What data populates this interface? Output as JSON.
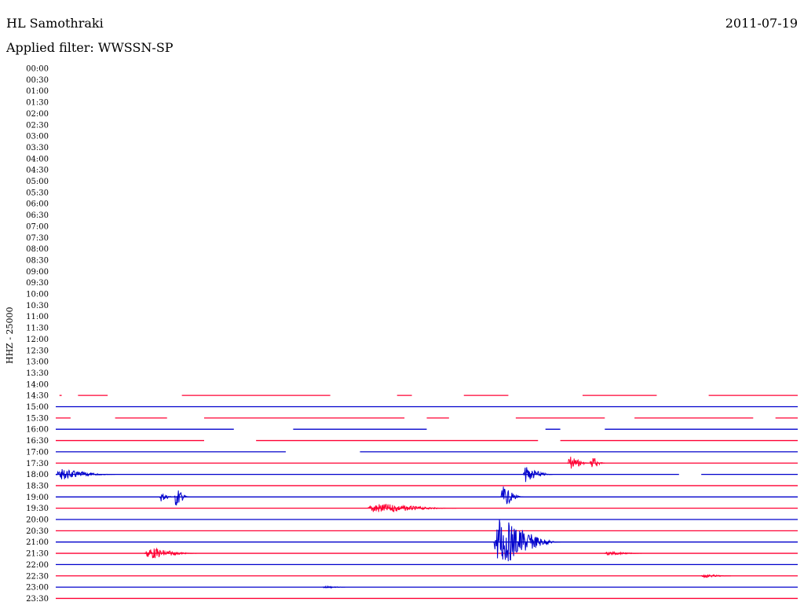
{
  "header": {
    "station": "HL Samothraki",
    "date": "2011-07-19",
    "filter": "Applied filter: WWSSN-SP"
  },
  "chart_data": {
    "type": "line",
    "title": "HL Samothraki",
    "ylabel": "HHZ - 25000",
    "colors": {
      "even": "#ff0033",
      "odd": "#0000cc"
    },
    "tick_labels": [
      "00:00",
      "00:30",
      "01:00",
      "01:30",
      "02:00",
      "02:30",
      "03:00",
      "03:30",
      "04:00",
      "04:30",
      "05:00",
      "05:30",
      "06:00",
      "06:30",
      "07:00",
      "07:30",
      "08:00",
      "08:30",
      "09:00",
      "09:30",
      "10:00",
      "10:30",
      "11:00",
      "11:30",
      "12:00",
      "12:30",
      "13:00",
      "13:30",
      "14:00",
      "14:30",
      "15:00",
      "15:30",
      "16:00",
      "16:30",
      "17:00",
      "17:30",
      "18:00",
      "18:30",
      "19:00",
      "19:30",
      "20:00",
      "20:30",
      "21:00",
      "21:30",
      "22:00",
      "22:30",
      "23:00",
      "23:30"
    ],
    "traces": [
      {
        "time": "14:30",
        "color": "red",
        "segments": [
          [
            0.005,
            0.008
          ],
          [
            0.03,
            0.07
          ],
          [
            0.17,
            0.37
          ],
          [
            0.46,
            0.48
          ],
          [
            0.55,
            0.61
          ],
          [
            0.71,
            0.81
          ],
          [
            0.88,
            1.0
          ]
        ]
      },
      {
        "time": "15:00",
        "color": "blue",
        "segments": [
          [
            0.0,
            1.0
          ]
        ]
      },
      {
        "time": "15:30",
        "color": "red",
        "segments": [
          [
            0.0,
            0.02
          ],
          [
            0.08,
            0.15
          ],
          [
            0.2,
            0.47
          ],
          [
            0.5,
            0.53
          ],
          [
            0.62,
            0.74
          ],
          [
            0.78,
            0.94
          ],
          [
            0.97,
            1.0
          ]
        ]
      },
      {
        "time": "16:00",
        "color": "blue",
        "segments": [
          [
            0.0,
            0.24
          ],
          [
            0.32,
            0.5
          ],
          [
            0.66,
            0.68
          ],
          [
            0.74,
            1.0
          ]
        ]
      },
      {
        "time": "16:30",
        "color": "red",
        "segments": [
          [
            0.0,
            0.2
          ],
          [
            0.27,
            0.65
          ],
          [
            0.68,
            1.0
          ]
        ]
      },
      {
        "time": "17:00",
        "color": "blue",
        "segments": [
          [
            0.0,
            0.31
          ],
          [
            0.41,
            1.0
          ]
        ]
      },
      {
        "time": "17:30",
        "color": "red",
        "segments": [
          [
            0.0,
            1.0
          ]
        ]
      },
      {
        "time": "18:00",
        "color": "blue",
        "segments": [
          [
            0.0,
            0.84
          ],
          [
            0.87,
            1.0
          ]
        ]
      },
      {
        "time": "18:30",
        "color": "red",
        "segments": [
          [
            0.0,
            1.0
          ]
        ]
      },
      {
        "time": "19:00",
        "color": "blue",
        "segments": [
          [
            0.0,
            1.0
          ]
        ]
      },
      {
        "time": "19:30",
        "color": "red",
        "segments": [
          [
            0.0,
            1.0
          ]
        ]
      },
      {
        "time": "20:00",
        "color": "blue",
        "segments": [
          [
            0.0,
            1.0
          ]
        ]
      },
      {
        "time": "20:30",
        "color": "red",
        "segments": [
          [
            0.0,
            1.0
          ]
        ]
      },
      {
        "time": "21:00",
        "color": "blue",
        "segments": [
          [
            0.0,
            1.0
          ]
        ]
      },
      {
        "time": "21:30",
        "color": "red",
        "segments": [
          [
            0.0,
            1.0
          ]
        ]
      },
      {
        "time": "22:00",
        "color": "blue",
        "segments": [
          [
            0.0,
            1.0
          ]
        ]
      },
      {
        "time": "22:30",
        "color": "red",
        "segments": [
          [
            0.0,
            1.0
          ]
        ]
      },
      {
        "time": "23:00",
        "color": "blue",
        "segments": [
          [
            0.0,
            1.0
          ]
        ]
      },
      {
        "time": "23:30",
        "color": "red",
        "segments": [
          [
            0.0,
            1.0
          ]
        ]
      }
    ],
    "events": [
      {
        "time": "17:30",
        "x": 0.69,
        "amp": 12,
        "len": 0.03
      },
      {
        "time": "17:30",
        "x": 0.72,
        "amp": 12,
        "len": 0.02
      },
      {
        "time": "18:00",
        "x": 0.0,
        "amp": 8,
        "len": 0.08
      },
      {
        "time": "18:00",
        "x": 0.63,
        "amp": 12,
        "len": 0.04
      },
      {
        "time": "19:00",
        "x": 0.14,
        "amp": 7,
        "len": 0.02
      },
      {
        "time": "19:00",
        "x": 0.16,
        "amp": 16,
        "len": 0.02
      },
      {
        "time": "19:00",
        "x": 0.6,
        "amp": 16,
        "len": 0.03
      },
      {
        "time": "19:30",
        "x": 0.42,
        "amp": 8,
        "len": 0.12
      },
      {
        "time": "21:00",
        "x": 0.59,
        "amp": 38,
        "len": 0.09
      },
      {
        "time": "21:30",
        "x": 0.12,
        "amp": 9,
        "len": 0.07
      },
      {
        "time": "21:30",
        "x": 0.74,
        "amp": 3,
        "len": 0.05
      },
      {
        "time": "22:30",
        "x": 0.87,
        "amp": 3,
        "len": 0.04
      },
      {
        "time": "23:00",
        "x": 0.36,
        "amp": 2,
        "len": 0.03
      }
    ]
  }
}
